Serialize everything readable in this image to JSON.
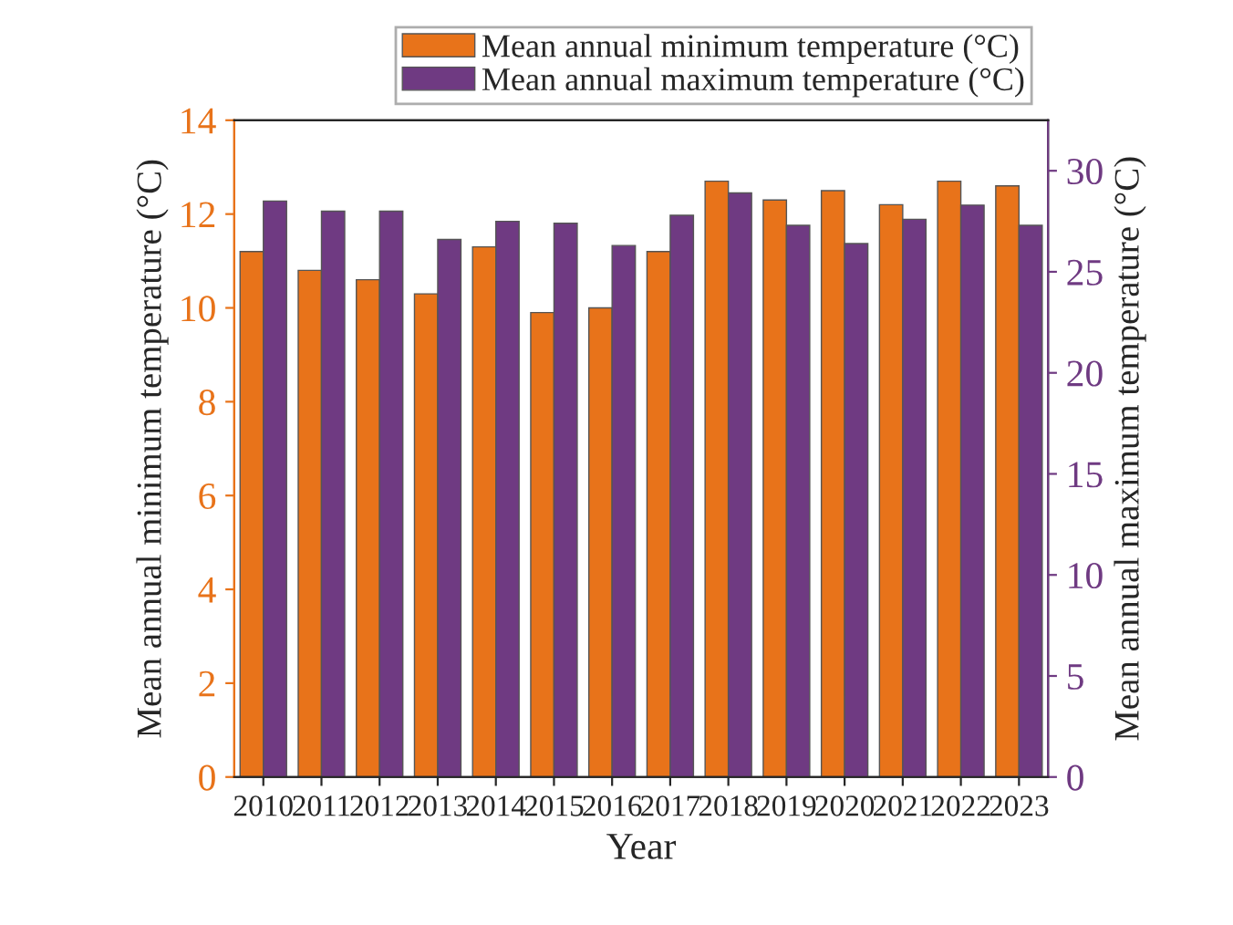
{
  "chart_data": {
    "type": "bar",
    "xlabel": "Year",
    "ylabel": "Mean annual minimum temperature (°C)",
    "y2label": "Mean annual maximum temperature (°C)",
    "categories": [
      "2010",
      "2011",
      "2012",
      "2013",
      "2014",
      "2015",
      "2016",
      "2017",
      "2018",
      "2019",
      "2020",
      "2021",
      "2022",
      "2023"
    ],
    "series": [
      {
        "name": "Mean annual minimum temperature (°C)",
        "color": "#e8731a",
        "values": [
          11.2,
          10.8,
          10.6,
          10.3,
          11.3,
          9.9,
          10.0,
          11.2,
          12.7,
          12.3,
          12.5,
          12.2,
          12.7,
          12.6
        ]
      },
      {
        "name": "Mean annual maximum temperature (°C)",
        "color": "#6f3a82",
        "axis": "y2",
        "values": [
          28.5,
          28.0,
          28.0,
          26.6,
          27.5,
          27.4,
          26.3,
          27.8,
          28.9,
          27.3,
          26.4,
          27.6,
          28.3,
          27.3
        ]
      }
    ],
    "ylim": [
      0,
      14
    ],
    "yticks": [
      0,
      2,
      4,
      6,
      8,
      10,
      12,
      14
    ],
    "y2lim": [
      0,
      32.5
    ],
    "y2ticks": [
      0,
      5,
      10,
      15,
      20,
      25,
      30
    ],
    "grid": false,
    "legend": "top right"
  }
}
